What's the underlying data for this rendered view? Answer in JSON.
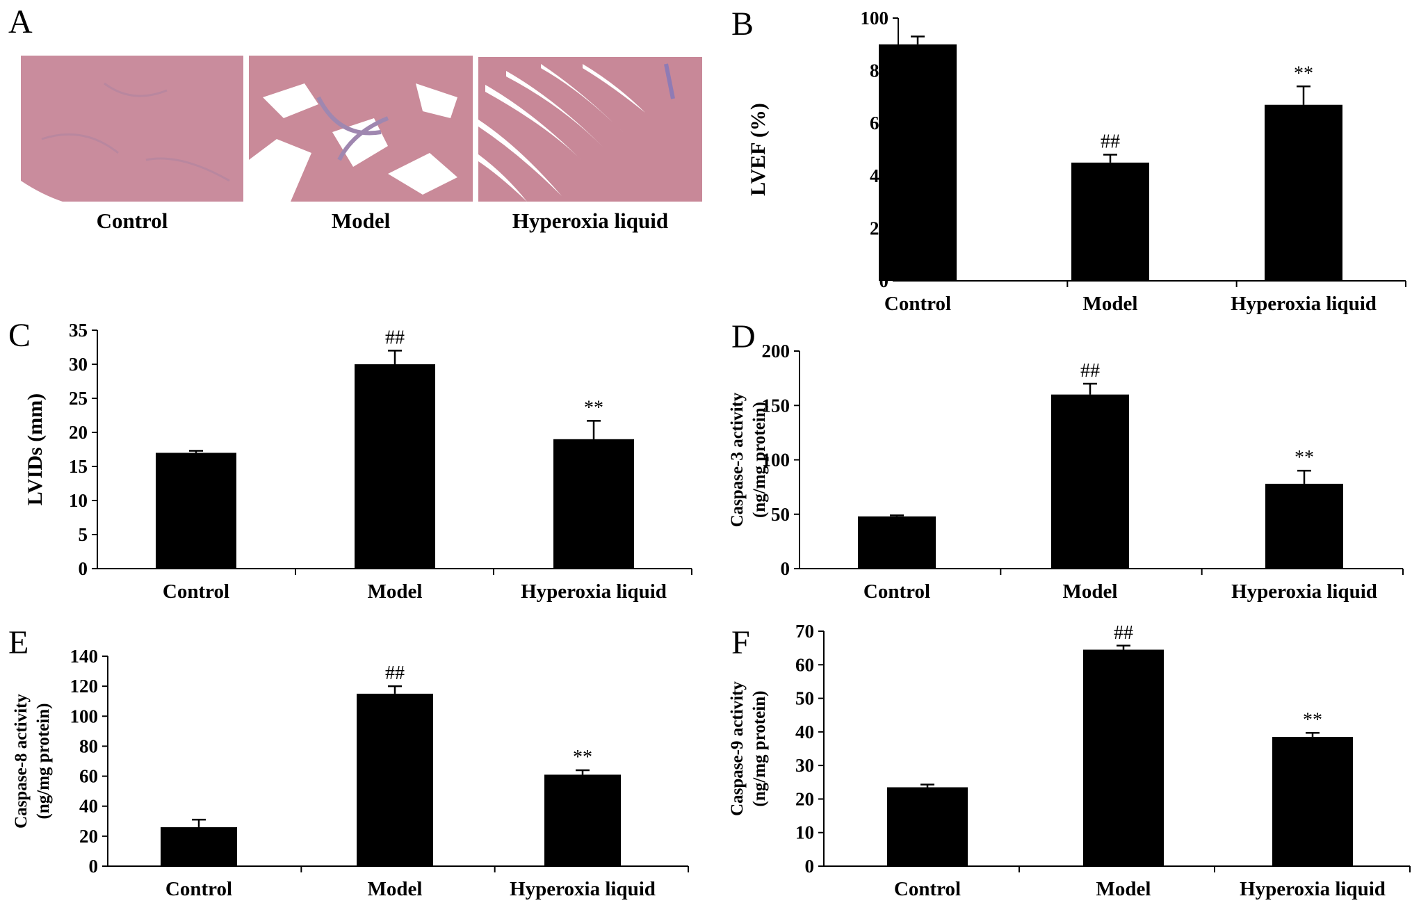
{
  "figure": {
    "panel_a": {
      "letter": "A",
      "images": [
        {
          "caption": "Control",
          "tissue_color": "#c98c9d",
          "alt_color": "#b9879f"
        },
        {
          "caption": "Model",
          "tissue_color": "#c98a99",
          "alt_color": "#9f87b0"
        },
        {
          "caption": "Hyperoxia liquid",
          "tissue_color": "#c88898",
          "alt_color": "#8f7bb5"
        }
      ]
    }
  },
  "chart_data": [
    {
      "panel": "B",
      "type": "bar",
      "categories": [
        "Control",
        "Model",
        "Hyperoxia liquid"
      ],
      "values": [
        90,
        45,
        67
      ],
      "errors": [
        3,
        3,
        7
      ],
      "annotations": [
        "",
        "##",
        "**"
      ],
      "ylabel": [
        "LVEF (%)"
      ],
      "ylim": [
        0,
        100
      ],
      "yticks": [
        0,
        20,
        40,
        60,
        80,
        100
      ],
      "bar_color": "#000000",
      "grid": false
    },
    {
      "panel": "C",
      "type": "bar",
      "categories": [
        "Control",
        "Model",
        "Hyperoxia liquid"
      ],
      "values": [
        17,
        30,
        19
      ],
      "errors": [
        0.3,
        2,
        2.7
      ],
      "annotations": [
        "",
        "##",
        "**"
      ],
      "ylabel": [
        "LVIDs (mm)"
      ],
      "ylim": [
        0,
        35
      ],
      "yticks": [
        0,
        5,
        10,
        15,
        20,
        25,
        30,
        35
      ],
      "bar_color": "#000000",
      "grid": false
    },
    {
      "panel": "D",
      "type": "bar",
      "categories": [
        "Control",
        "Model",
        "Hyperoxia liquid"
      ],
      "values": [
        48,
        160,
        78
      ],
      "errors": [
        1,
        10,
        12
      ],
      "annotations": [
        "",
        "##",
        "**"
      ],
      "ylabel": [
        "Caspase-3 activity",
        "(ng/mg protein)"
      ],
      "ylim": [
        0,
        200
      ],
      "yticks": [
        0,
        50,
        100,
        150,
        200
      ],
      "bar_color": "#000000",
      "grid": false
    },
    {
      "panel": "E",
      "type": "bar",
      "categories": [
        "Control",
        "Model",
        "Hyperoxia liquid"
      ],
      "values": [
        26,
        115,
        61
      ],
      "errors": [
        5,
        5,
        3
      ],
      "annotations": [
        "",
        "##",
        "**"
      ],
      "ylabel": [
        "Caspase-8 activity",
        "(ng/mg protein)"
      ],
      "ylim": [
        0,
        140
      ],
      "yticks": [
        0,
        20,
        40,
        60,
        80,
        100,
        120,
        140
      ],
      "bar_color": "#000000",
      "grid": false
    },
    {
      "panel": "F",
      "type": "bar",
      "categories": [
        "Control",
        "Model",
        "Hyperoxia liquid"
      ],
      "values": [
        23.5,
        64.5,
        38.5
      ],
      "errors": [
        0.8,
        1.2,
        1.2
      ],
      "annotations": [
        "",
        "##",
        "**"
      ],
      "ylabel": [
        "Caspase-9 activity",
        "(ng/mg protein)"
      ],
      "ylim": [
        0,
        70
      ],
      "yticks": [
        0,
        10,
        20,
        30,
        40,
        50,
        60,
        70
      ],
      "bar_color": "#000000",
      "grid": false
    }
  ]
}
